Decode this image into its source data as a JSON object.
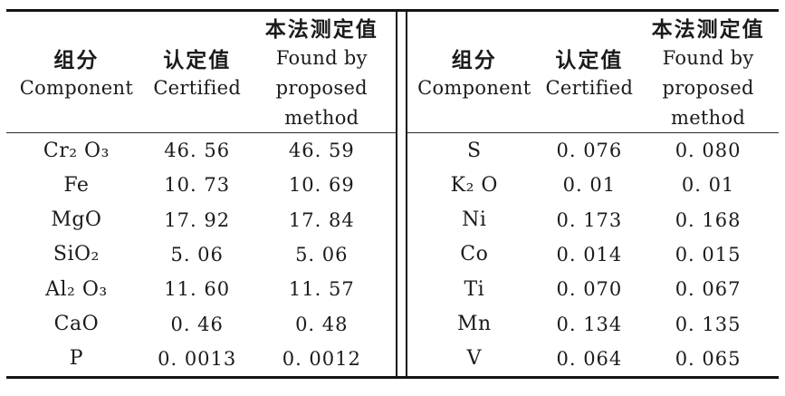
{
  "header": {
    "component_zh": "组分",
    "component_en": "Component",
    "certified_zh": "认定值",
    "certified_en": "Certified",
    "found_zh": "本法测定值",
    "found_en_line1": "Found by",
    "found_en_line2": "proposed",
    "found_en_line3": "method"
  },
  "left_rows": [
    {
      "component": "Cr₂ O₃",
      "certified": "46. 56",
      "found": "46. 59"
    },
    {
      "component": "Fe",
      "certified": "10. 73",
      "found": "10. 69"
    },
    {
      "component": "MgO",
      "certified": "17. 92",
      "found": "17. 84"
    },
    {
      "component": "SiO₂",
      "certified": "5. 06",
      "found": "5. 06"
    },
    {
      "component": "Al₂ O₃",
      "certified": "11. 60",
      "found": "11. 57"
    },
    {
      "component": "CaO",
      "certified": "0. 46",
      "found": "0. 48"
    },
    {
      "component": "P",
      "certified": "0. 0013",
      "found": "0. 0012"
    }
  ],
  "right_rows": [
    {
      "component": "S",
      "certified": "0. 076",
      "found": "0. 080"
    },
    {
      "component": "K₂ O",
      "certified": "0. 01",
      "found": "0. 01"
    },
    {
      "component": "Ni",
      "certified": "0. 173",
      "found": "0. 168"
    },
    {
      "component": "Co",
      "certified": "0. 014",
      "found": "0. 015"
    },
    {
      "component": "Ti",
      "certified": "0. 070",
      "found": "0. 067"
    },
    {
      "component": "Mn",
      "certified": "0. 134",
      "found": "0. 135"
    },
    {
      "component": "V",
      "certified": "0. 064",
      "found": "0. 065"
    }
  ],
  "colors": {
    "text": "#1b1b1b",
    "rule": "#141414",
    "background": "#ffffff"
  }
}
